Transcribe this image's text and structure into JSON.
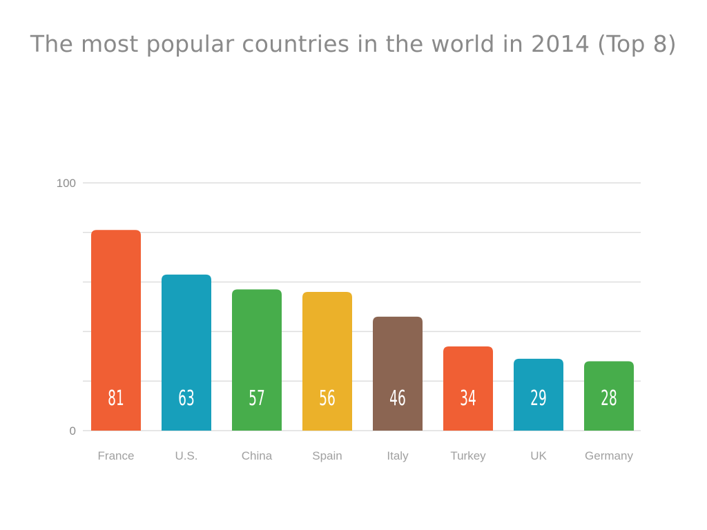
{
  "chart_data": {
    "type": "bar",
    "title": "The most popular countries in the world in 2014 (Top 8)",
    "xlabel": "",
    "ylabel": "",
    "ylim": [
      0,
      100
    ],
    "ytick_labels": [
      "0",
      "100"
    ],
    "grid": true,
    "categories": [
      "France",
      "U.S.",
      "China",
      "Spain",
      "Italy",
      "Turkey",
      "UK",
      "Germany"
    ],
    "values": [
      81,
      63,
      57,
      56,
      46,
      34,
      29,
      28
    ],
    "colors": [
      "#f05f34",
      "#179fbb",
      "#47ad4b",
      "#ebb12a",
      "#8b6552",
      "#f05f34",
      "#179fbb",
      "#47ad4b"
    ],
    "inside_label_color": "#ffffff",
    "outside_label_color": "#111111"
  }
}
